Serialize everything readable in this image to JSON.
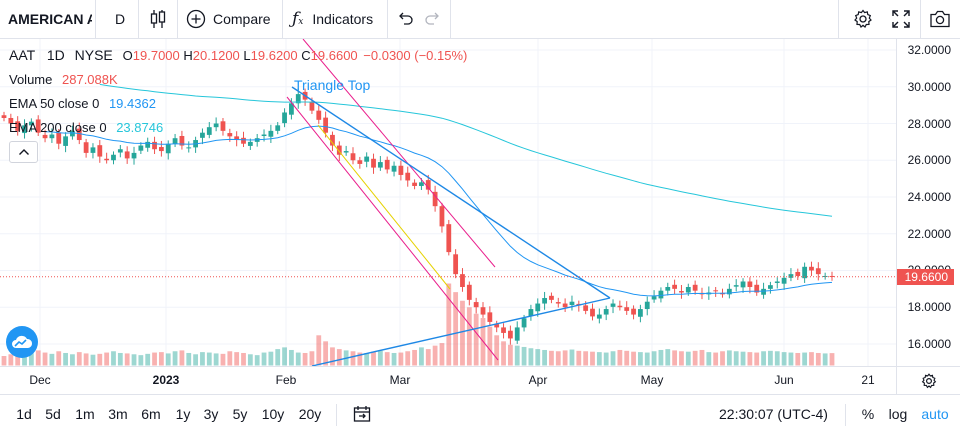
{
  "toolbar": {
    "symbol": "AMERICAN A",
    "interval": "D",
    "compare_label": "Compare",
    "indicators_label": "Indicators"
  },
  "legend": {
    "ticker": "AAT",
    "timeframe": "1D",
    "exchange": "NYSE",
    "open_key": "O",
    "open": "19.7000",
    "high_key": "H",
    "high": "20.1200",
    "low_key": "L",
    "low": "19.6200",
    "close_key": "C",
    "close": "19.6600",
    "change": "−0.0300 (−0.15%)",
    "volume_label": "Volume",
    "volume": "287.088K",
    "ema50_label": "EMA 50 close 0",
    "ema50": "19.4362",
    "ema200_label": "EMA 200 close 0",
    "ema200": "23.8746"
  },
  "annotation": "Triangle Top",
  "price_axis": [
    "32.0000",
    "30.0000",
    "28.0000",
    "26.0000",
    "24.0000",
    "22.0000",
    "20.0000",
    "18.0000",
    "16.0000"
  ],
  "last_price": "19.6600",
  "time_axis": [
    {
      "label": "Dec",
      "bold": false
    },
    {
      "label": "2023",
      "bold": true
    },
    {
      "label": "Feb",
      "bold": false
    },
    {
      "label": "Mar",
      "bold": false
    },
    {
      "label": "Apr",
      "bold": false
    },
    {
      "label": "May",
      "bold": false
    },
    {
      "label": "Jun",
      "bold": false
    },
    {
      "label": "21",
      "bold": false
    }
  ],
  "ranges": [
    "1d",
    "5d",
    "1m",
    "3m",
    "6m",
    "1y",
    "3y",
    "5y",
    "10y",
    "20y"
  ],
  "clock": "22:30:07 (UTC-4)",
  "bottom_right": {
    "percent": "%",
    "log": "log",
    "auto": "auto"
  },
  "colors": {
    "up": "#26a69a",
    "down": "#ef5350",
    "ema50": "#2196f3",
    "ema200": "#26c6da",
    "trend": "#1e88e5",
    "channel": "#e91e8c",
    "yellow": "#e6d200"
  },
  "chart_data": {
    "type": "candlestick",
    "ylim": [
      14.8,
      32.6
    ],
    "closes": [
      28.3,
      28.0,
      27.6,
      27.9,
      28.1,
      27.5,
      27.2,
      27.4,
      26.9,
      27.3,
      27.6,
      27.1,
      26.4,
      26.7,
      26.2,
      26.0,
      26.3,
      26.6,
      26.1,
      26.4,
      26.8,
      27.0,
      26.6,
      26.5,
      26.9,
      27.2,
      26.8,
      26.7,
      27.1,
      27.5,
      27.8,
      28.0,
      27.6,
      27.3,
      27.1,
      26.9,
      27.0,
      27.2,
      27.4,
      27.6,
      27.9,
      28.6,
      29.1,
      29.6,
      29.3,
      28.7,
      28.2,
      27.5,
      26.8,
      26.3,
      26.5,
      26.0,
      25.8,
      26.2,
      25.6,
      25.9,
      25.5,
      25.7,
      25.2,
      24.9,
      24.6,
      24.8,
      24.4,
      23.5,
      22.4,
      21.0,
      19.8,
      19.1,
      18.4,
      18.0,
      17.6,
      17.2,
      16.9,
      16.6,
      16.3,
      16.9,
      17.4,
      17.9,
      18.2,
      18.5,
      18.4,
      18.2,
      18.0,
      18.3,
      18.1,
      17.8,
      17.5,
      17.6,
      17.9,
      18.2,
      18.0,
      17.8,
      17.6,
      17.9,
      18.3,
      18.6,
      18.9,
      19.1,
      19.0,
      18.8,
      19.1,
      18.9,
      18.7,
      18.8,
      18.9,
      18.7,
      19.0,
      19.2,
      19.4,
      19.1,
      18.8,
      19.0,
      19.2,
      19.4,
      19.6,
      19.8,
      19.7,
      20.2,
      20.0,
      19.8,
      19.7,
      19.66
    ],
    "volumes": [
      220,
      260,
      240,
      310,
      280,
      350,
      300,
      270,
      330,
      290,
      260,
      310,
      280,
      250,
      270,
      300,
      330,
      290,
      280,
      260,
      240,
      270,
      300,
      310,
      280,
      330,
      350,
      290,
      260,
      310,
      300,
      280,
      270,
      330,
      310,
      290,
      260,
      240,
      300,
      320,
      380,
      420,
      360,
      300,
      290,
      330,
      700,
      560,
      420,
      380,
      350,
      330,
      300,
      290,
      320,
      340,
      310,
      290,
      300,
      330,
      360,
      420,
      380,
      460,
      520,
      1900,
      1700,
      1500,
      1350,
      1200,
      1100,
      900,
      700,
      560,
      480,
      460,
      430,
      400,
      380,
      360,
      340,
      330,
      350,
      370,
      340,
      330,
      320,
      310,
      300,
      330,
      360,
      340,
      320,
      310,
      300,
      330,
      360,
      380,
      350,
      330,
      320,
      340,
      360,
      310,
      300,
      330,
      350,
      330,
      320,
      310,
      300,
      330,
      340,
      330,
      310,
      300,
      290,
      300,
      310,
      290,
      280,
      287
    ]
  }
}
